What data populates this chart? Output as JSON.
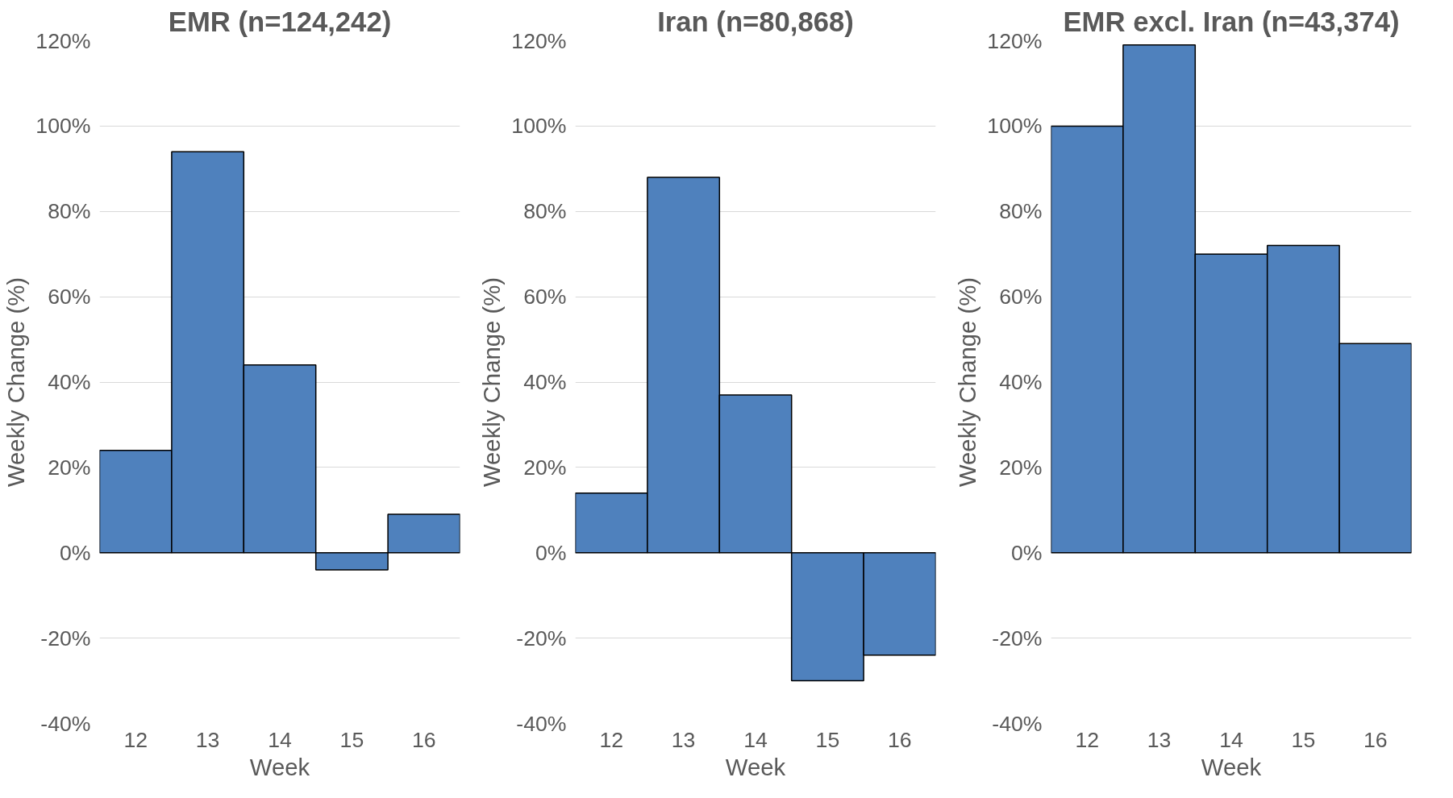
{
  "chart_data": [
    {
      "type": "bar",
      "title": "EMR (n=124,242)",
      "xlabel": "Week",
      "ylabel": "Weekly Change (%)",
      "categories": [
        "12",
        "13",
        "14",
        "15",
        "16"
      ],
      "values": [
        24,
        94,
        44,
        -4,
        9
      ],
      "color": "#4f81bd",
      "ylim": [
        -40,
        120
      ],
      "yticks": [
        {
          "value": -40,
          "label": "-40%"
        },
        {
          "value": -20,
          "label": "-20%"
        },
        {
          "value": 0,
          "label": "0%"
        },
        {
          "value": 20,
          "label": "20%"
        },
        {
          "value": 40,
          "label": "40%"
        },
        {
          "value": 60,
          "label": "60%"
        },
        {
          "value": 80,
          "label": "80%"
        },
        {
          "value": 100,
          "label": "100%"
        },
        {
          "value": 120,
          "label": "120%"
        }
      ],
      "grid": "y"
    },
    {
      "type": "bar",
      "title": "Iran (n=80,868)",
      "xlabel": "Week",
      "ylabel": "Weekly Change (%)",
      "categories": [
        "12",
        "13",
        "14",
        "15",
        "16"
      ],
      "values": [
        14,
        88,
        37,
        -30,
        -24
      ],
      "color": "#4f81bd",
      "ylim": [
        -40,
        120
      ],
      "yticks": [
        {
          "value": -40,
          "label": "-40%"
        },
        {
          "value": -20,
          "label": "-20%"
        },
        {
          "value": 0,
          "label": "0%"
        },
        {
          "value": 20,
          "label": "20%"
        },
        {
          "value": 40,
          "label": "40%"
        },
        {
          "value": 60,
          "label": "60%"
        },
        {
          "value": 80,
          "label": "80%"
        },
        {
          "value": 100,
          "label": "100%"
        },
        {
          "value": 120,
          "label": "120%"
        }
      ],
      "grid": "y"
    },
    {
      "type": "bar",
      "title": "EMR excl. Iran (n=43,374)",
      "xlabel": "Week",
      "ylabel": "Weekly Change (%)",
      "categories": [
        "12",
        "13",
        "14",
        "15",
        "16"
      ],
      "values": [
        100,
        119,
        70,
        72,
        49
      ],
      "color": "#4f81bd",
      "ylim": [
        -40,
        120
      ],
      "yticks": [
        {
          "value": -40,
          "label": "-40%"
        },
        {
          "value": -20,
          "label": "-20%"
        },
        {
          "value": 0,
          "label": "0%"
        },
        {
          "value": 20,
          "label": "20%"
        },
        {
          "value": 40,
          "label": "40%"
        },
        {
          "value": 60,
          "label": "60%"
        },
        {
          "value": 80,
          "label": "80%"
        },
        {
          "value": 100,
          "label": "100%"
        },
        {
          "value": 120,
          "label": "120%"
        }
      ],
      "grid": "y"
    }
  ]
}
